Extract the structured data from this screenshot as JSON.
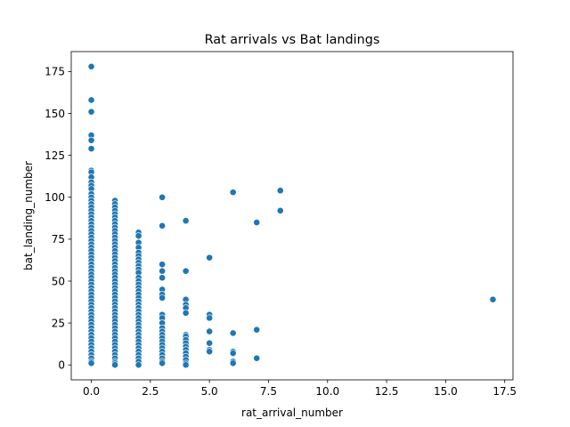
{
  "chart_data": {
    "type": "scatter",
    "title": "Rat arrivals vs Bat landings",
    "xlabel": "rat_arrival_number",
    "ylabel": "bat_landing_number",
    "xlim": [
      -0.85,
      17.85
    ],
    "ylim": [
      -8.9,
      186.9
    ],
    "xticks": [
      0,
      2.5,
      5,
      7.5,
      10,
      12.5,
      15,
      17.5
    ],
    "xtick_labels": [
      "0.0",
      "2.5",
      "5.0",
      "7.5",
      "10.0",
      "12.5",
      "15.0",
      "17.5"
    ],
    "yticks": [
      0,
      25,
      50,
      75,
      100,
      125,
      150,
      175
    ],
    "ytick_labels": [
      "0",
      "25",
      "50",
      "75",
      "100",
      "125",
      "150",
      "175"
    ],
    "grid": false,
    "color": "#1f77b4",
    "points": [
      [
        0,
        178
      ],
      [
        0,
        158
      ],
      [
        0,
        151
      ],
      [
        0,
        137
      ],
      [
        0,
        134
      ],
      [
        0,
        129
      ],
      [
        0,
        116
      ],
      [
        0,
        115
      ],
      [
        0,
        112
      ],
      [
        0,
        109
      ],
      [
        0,
        107
      ],
      [
        0,
        105
      ],
      [
        0,
        102
      ],
      [
        0,
        100
      ],
      [
        0,
        98
      ],
      [
        0,
        96
      ],
      [
        0,
        94
      ],
      [
        0,
        92
      ],
      [
        0,
        90
      ],
      [
        0,
        88
      ],
      [
        0,
        86
      ],
      [
        0,
        84
      ],
      [
        0,
        82
      ],
      [
        0,
        80
      ],
      [
        0,
        78
      ],
      [
        0,
        76
      ],
      [
        0,
        74
      ],
      [
        0,
        72
      ],
      [
        0,
        70
      ],
      [
        0,
        68
      ],
      [
        0,
        66
      ],
      [
        0,
        64
      ],
      [
        0,
        62
      ],
      [
        0,
        60
      ],
      [
        0,
        58
      ],
      [
        0,
        56
      ],
      [
        0,
        54
      ],
      [
        0,
        52
      ],
      [
        0,
        50
      ],
      [
        0,
        48
      ],
      [
        0,
        46
      ],
      [
        0,
        44
      ],
      [
        0,
        42
      ],
      [
        0,
        40
      ],
      [
        0,
        38
      ],
      [
        0,
        36
      ],
      [
        0,
        34
      ],
      [
        0,
        32
      ],
      [
        0,
        30
      ],
      [
        0,
        28
      ],
      [
        0,
        26
      ],
      [
        0,
        24
      ],
      [
        0,
        22
      ],
      [
        0,
        20
      ],
      [
        0,
        18
      ],
      [
        0,
        16
      ],
      [
        0,
        14
      ],
      [
        0,
        12
      ],
      [
        0,
        10
      ],
      [
        0,
        8
      ],
      [
        0,
        6
      ],
      [
        0,
        4
      ],
      [
        0,
        2
      ],
      [
        0,
        1
      ],
      [
        1,
        98
      ],
      [
        1,
        96
      ],
      [
        1,
        94
      ],
      [
        1,
        92
      ],
      [
        1,
        90
      ],
      [
        1,
        88
      ],
      [
        1,
        86
      ],
      [
        1,
        84
      ],
      [
        1,
        82
      ],
      [
        1,
        80
      ],
      [
        1,
        78
      ],
      [
        1,
        76
      ],
      [
        1,
        74
      ],
      [
        1,
        72
      ],
      [
        1,
        70
      ],
      [
        1,
        68
      ],
      [
        1,
        66
      ],
      [
        1,
        64
      ],
      [
        1,
        62
      ],
      [
        1,
        60
      ],
      [
        1,
        58
      ],
      [
        1,
        56
      ],
      [
        1,
        54
      ],
      [
        1,
        52
      ],
      [
        1,
        50
      ],
      [
        1,
        48
      ],
      [
        1,
        46
      ],
      [
        1,
        44
      ],
      [
        1,
        42
      ],
      [
        1,
        40
      ],
      [
        1,
        38
      ],
      [
        1,
        36
      ],
      [
        1,
        34
      ],
      [
        1,
        32
      ],
      [
        1,
        30
      ],
      [
        1,
        28
      ],
      [
        1,
        26
      ],
      [
        1,
        24
      ],
      [
        1,
        22
      ],
      [
        1,
        20
      ],
      [
        1,
        18
      ],
      [
        1,
        16
      ],
      [
        1,
        14
      ],
      [
        1,
        12
      ],
      [
        1,
        10
      ],
      [
        1,
        8
      ],
      [
        1,
        6
      ],
      [
        1,
        4
      ],
      [
        1,
        2
      ],
      [
        1,
        1
      ],
      [
        1,
        0
      ],
      [
        2,
        79
      ],
      [
        2,
        77
      ],
      [
        2,
        73
      ],
      [
        2,
        70
      ],
      [
        2,
        67
      ],
      [
        2,
        65
      ],
      [
        2,
        63
      ],
      [
        2,
        61
      ],
      [
        2,
        59
      ],
      [
        2,
        57
      ],
      [
        2,
        55
      ],
      [
        2,
        52
      ],
      [
        2,
        50
      ],
      [
        2,
        48
      ],
      [
        2,
        46
      ],
      [
        2,
        44
      ],
      [
        2,
        42
      ],
      [
        2,
        40
      ],
      [
        2,
        38
      ],
      [
        2,
        36
      ],
      [
        2,
        34
      ],
      [
        2,
        32
      ],
      [
        2,
        30
      ],
      [
        2,
        28
      ],
      [
        2,
        26
      ],
      [
        2,
        24
      ],
      [
        2,
        22
      ],
      [
        2,
        20
      ],
      [
        2,
        18
      ],
      [
        2,
        16
      ],
      [
        2,
        14
      ],
      [
        2,
        12
      ],
      [
        2,
        10
      ],
      [
        2,
        8
      ],
      [
        2,
        6
      ],
      [
        2,
        4
      ],
      [
        2,
        2
      ],
      [
        2,
        0
      ],
      [
        3,
        100
      ],
      [
        3,
        83
      ],
      [
        3,
        60
      ],
      [
        3,
        56
      ],
      [
        3,
        52
      ],
      [
        3,
        45
      ],
      [
        3,
        42
      ],
      [
        3,
        40
      ],
      [
        3,
        30
      ],
      [
        3,
        28
      ],
      [
        3,
        25
      ],
      [
        3,
        22
      ],
      [
        3,
        20
      ],
      [
        3,
        18
      ],
      [
        3,
        16
      ],
      [
        3,
        14
      ],
      [
        3,
        12
      ],
      [
        3,
        10
      ],
      [
        3,
        8
      ],
      [
        3,
        6
      ],
      [
        3,
        4
      ],
      [
        3,
        2
      ],
      [
        3,
        1
      ],
      [
        4,
        86
      ],
      [
        4,
        56
      ],
      [
        4,
        39
      ],
      [
        4,
        36
      ],
      [
        4,
        34
      ],
      [
        4,
        31
      ],
      [
        4,
        18
      ],
      [
        4,
        17
      ],
      [
        4,
        15
      ],
      [
        4,
        13
      ],
      [
        4,
        11
      ],
      [
        4,
        9
      ],
      [
        4,
        7
      ],
      [
        4,
        5
      ],
      [
        4,
        3
      ],
      [
        4,
        1
      ],
      [
        4,
        0
      ],
      [
        5,
        64
      ],
      [
        5,
        30
      ],
      [
        5,
        28
      ],
      [
        5,
        20
      ],
      [
        5,
        13
      ],
      [
        5,
        9
      ],
      [
        5,
        8
      ],
      [
        6,
        103
      ],
      [
        6,
        19
      ],
      [
        6,
        8
      ],
      [
        6,
        7
      ],
      [
        6,
        2
      ],
      [
        6,
        1
      ],
      [
        7,
        85
      ],
      [
        7,
        21
      ],
      [
        7,
        4
      ],
      [
        8,
        104
      ],
      [
        8,
        92
      ],
      [
        17,
        39
      ]
    ]
  }
}
